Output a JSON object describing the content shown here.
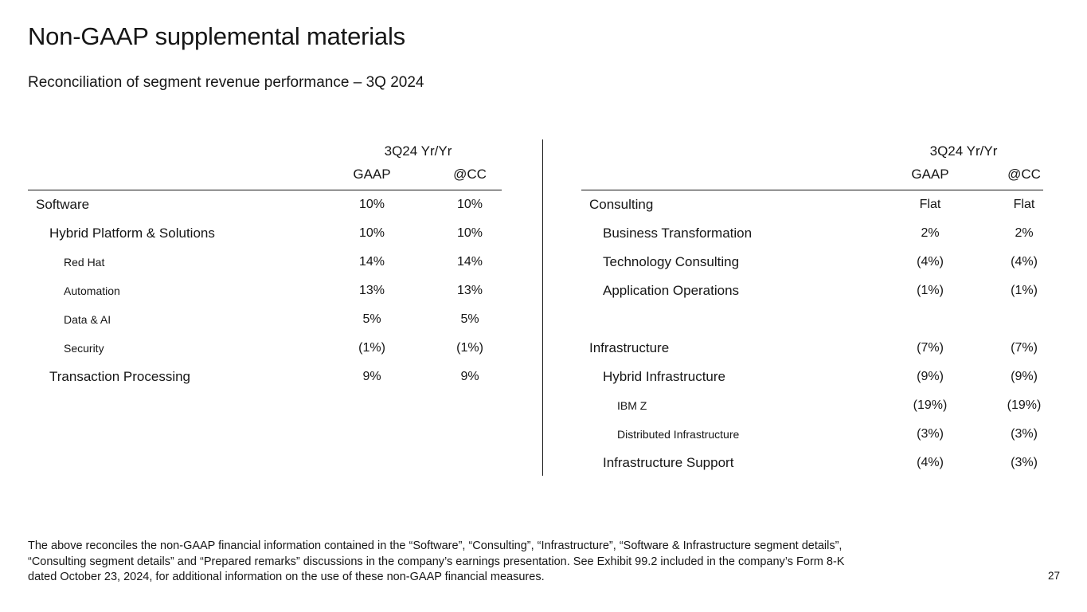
{
  "slide": {
    "title": "Non-GAAP supplemental materials",
    "subtitle": "Reconciliation of segment revenue performance – 3Q 2024",
    "page_number": "27",
    "footnote_lines": [
      "The above reconciles the non-GAAP financial information contained in the “Software”, “Consulting”, “Infrastructure”, “Software & Infrastructure segment details”,",
      "“Consulting segment details” and “Prepared remarks” discussions in the company’s earnings presentation. See Exhibit 99.2 included in the company’s Form 8-K",
      "dated October 23, 2024, for additional information on the use of these non-GAAP financial measures."
    ],
    "text_color": "#161616",
    "background_color": "#ffffff"
  },
  "tables": [
    {
      "name": "software-segment",
      "header_group": "3Q24 Yr/Yr",
      "columns": [
        "GAAP",
        "@CC"
      ],
      "rows": [
        {
          "label": "Software",
          "indent": 0,
          "gaap": "10%",
          "cc": "10%"
        },
        {
          "label": "Hybrid Platform & Solutions",
          "indent": 1,
          "gaap": "10%",
          "cc": "10%"
        },
        {
          "label": "Red Hat",
          "indent": 2,
          "gaap": "14%",
          "cc": "14%"
        },
        {
          "label": "Automation",
          "indent": 2,
          "gaap": "13%",
          "cc": "13%"
        },
        {
          "label": "Data & AI",
          "indent": 2,
          "gaap": "5%",
          "cc": "5%"
        },
        {
          "label": "Security",
          "indent": 2,
          "gaap": "(1%)",
          "cc": "(1%)"
        },
        {
          "label": "Transaction Processing",
          "indent": 1,
          "gaap": "9%",
          "cc": "9%"
        }
      ]
    },
    {
      "name": "consulting-infrastructure-segment",
      "header_group": "3Q24 Yr/Yr",
      "columns": [
        "GAAP",
        "@CC"
      ],
      "rows": [
        {
          "label": "Consulting",
          "indent": 0,
          "gaap": "Flat",
          "cc": "Flat"
        },
        {
          "label": "Business Transformation",
          "indent": 1,
          "gaap": "2%",
          "cc": "2%"
        },
        {
          "label": "Technology Consulting",
          "indent": 1,
          "gaap": "(4%)",
          "cc": "(4%)"
        },
        {
          "label": "Application Operations",
          "indent": 1,
          "gaap": "(1%)",
          "cc": "(1%)"
        },
        {
          "blank": true
        },
        {
          "label": "Infrastructure",
          "indent": 0,
          "gaap": "(7%)",
          "cc": "(7%)"
        },
        {
          "label": "Hybrid Infrastructure",
          "indent": 1,
          "gaap": "(9%)",
          "cc": "(9%)"
        },
        {
          "label": "IBM Z",
          "indent": 2,
          "gaap": "(19%)",
          "cc": "(19%)"
        },
        {
          "label": "Distributed Infrastructure",
          "indent": 2,
          "gaap": "(3%)",
          "cc": "(3%)"
        },
        {
          "label": "Infrastructure Support",
          "indent": 1,
          "gaap": "(4%)",
          "cc": "(3%)"
        }
      ]
    }
  ]
}
